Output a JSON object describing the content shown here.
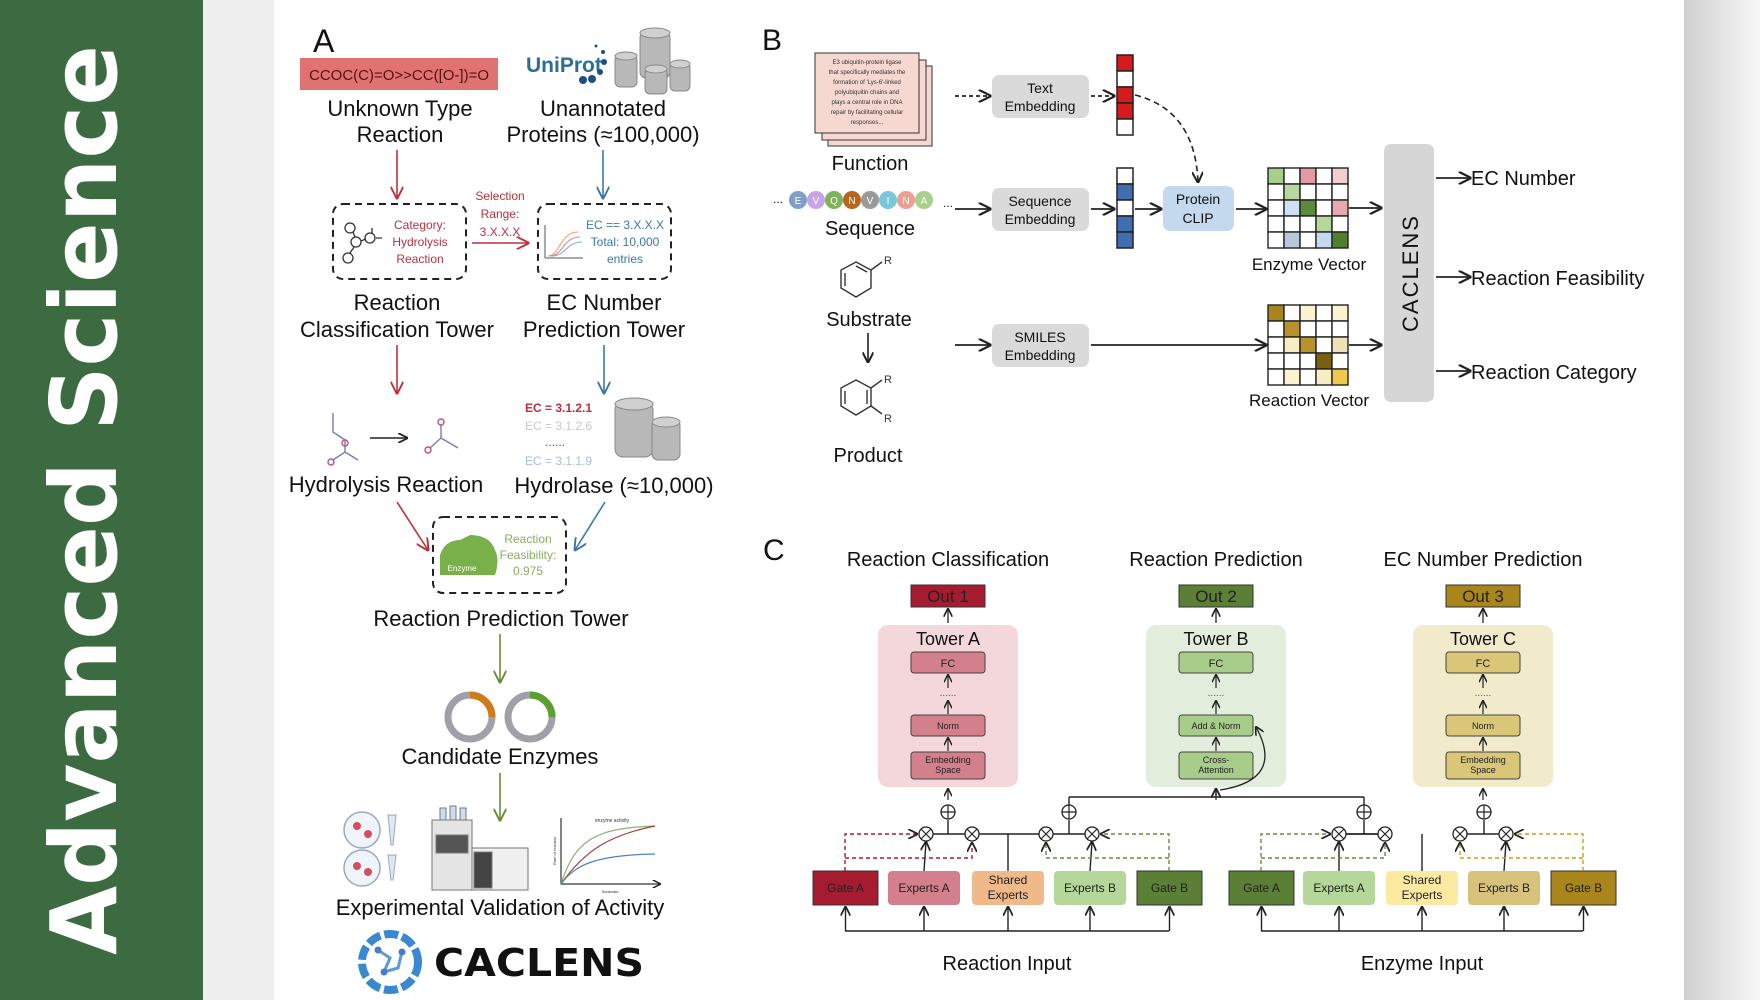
{
  "sidebar": {
    "title": "Advanced  Science",
    "bg_color": "#3d6b41"
  },
  "panel_a": {
    "label": "A",
    "smiles": "CCOC(C)=O>>CC([O-])=O",
    "unknown_reaction": [
      "Unknown Type",
      "Reaction"
    ],
    "uniprot_logo": "UniProt",
    "unannotated": [
      "Unannotated",
      "Proteins (≈100,000)"
    ],
    "category": [
      "Category:",
      "Hydrolysis",
      "Reaction"
    ],
    "selection": [
      "Selection",
      "Range:",
      "3.X.X.X"
    ],
    "ec_filter": [
      "EC == 3.X.X.X",
      "Total: 10,000",
      "entries"
    ],
    "classification_tower": [
      "Reaction",
      "Classification Tower"
    ],
    "ec_tower": [
      "EC Number",
      "Prediction Tower"
    ],
    "hydrolysis": "Hydrolysis Reaction",
    "ec_list": [
      "EC = 3.1.2.1",
      "EC = 3.1.2.6",
      "......",
      "EC = 3.1.1.9"
    ],
    "hydrolase": "Hydrolase (≈10,000)",
    "enzyme_tag": "Enzyme",
    "feasibility": [
      "Reaction",
      "Feasibility:",
      "0.975"
    ],
    "prediction_tower": "Reaction Prediction Tower",
    "candidates": "Candidate Enzymes",
    "plot_title": "enzyme activity",
    "plot_xlabel": "Substrate",
    "plot_ylabel": "Rate of reaction",
    "validation": "Experimental Validation of Activity",
    "logo_text": "CACLENS"
  },
  "panel_b": {
    "label": "B",
    "doc_text": [
      "E3 ubiquitin-protein ligase",
      "that specifically mediates the",
      "formation of 'Lys-6'-linked",
      "polyubiquitin chains and",
      "plays a central role in DNA",
      "repair by facilitating cellular",
      "responses..."
    ],
    "function": "Function",
    "text_embedding": [
      "Text",
      "Embedding"
    ],
    "sequence_residues": [
      "E",
      "V",
      "Q",
      "N",
      "V",
      "I",
      "N",
      "A"
    ],
    "residue_colors": [
      "#7f9fc6",
      "#c7a4e6",
      "#7fb25a",
      "#b8661e",
      "#9a9a9a",
      "#78c8d8",
      "#e8a090",
      "#a8d08a"
    ],
    "ellipsis": "...",
    "sequence": "Sequence",
    "sequence_embedding": [
      "Sequence",
      "Embedding"
    ],
    "protein_clip": [
      "Protein",
      "CLIP"
    ],
    "substrate": "Substrate",
    "product": "Product",
    "r_group": "R",
    "smiles_embedding": [
      "SMILES",
      "Embedding"
    ],
    "enzyme_vector": "Enzyme Vector",
    "reaction_vector": "Reaction Vector",
    "caclens": "CACLENS",
    "outputs": [
      "EC Number",
      "Reaction Feasibility",
      "Reaction Category"
    ],
    "text_vector_colors": [
      "#d41c1c",
      "#ffffff",
      "#d41c1c",
      "#d41c1c",
      "#ffffff"
    ],
    "seq_vector_colors": [
      "#ffffff",
      "#3f6fae",
      "#ffffff",
      "#3f6fae",
      "#3f6fae"
    ],
    "enzyme_grid_colors": [
      [
        "#a8cf8a",
        "#ffffff",
        "#e49aa4",
        "#ffffff",
        "#f2cdd2"
      ],
      [
        "#ffffff",
        "#b8d8a0",
        "#ffffff",
        "#ffffff",
        "#ffffff"
      ],
      [
        "#ffffff",
        "#cfe0f2",
        "#5b8a3a",
        "#ffffff",
        "#e8a8b0"
      ],
      [
        "#ffffff",
        "#ffffff",
        "#ffffff",
        "#b5d89a",
        "#ffffff"
      ],
      [
        "#ffffff",
        "#b8c8d8",
        "#ffffff",
        "#c5daf0",
        "#4f7f2f"
      ]
    ],
    "reaction_grid_colors": [
      [
        "#a8861c",
        "#ffffff",
        "#fbf2cf",
        "#ffffff",
        "#fbf2cf"
      ],
      [
        "#ffffff",
        "#b8922a",
        "#ffffff",
        "#ffffff",
        "#ffffff"
      ],
      [
        "#ffffff",
        "#f7ecc4",
        "#b8922a",
        "#ffffff",
        "#eee2b8"
      ],
      [
        "#ffffff",
        "#ffffff",
        "#ffffff",
        "#7a5f10",
        "#ffffff"
      ],
      [
        "#ffffff",
        "#fbf2cf",
        "#ffffff",
        "#f7ecc4",
        "#f0c850"
      ]
    ]
  },
  "panel_c": {
    "label": "C",
    "tasks": [
      {
        "title": "Reaction Classification",
        "out": "Out 1",
        "tower": "Tower A",
        "blocks": [
          "FC",
          "......",
          "Norm",
          "Embedding Space"
        ],
        "out_color": "#a51c30",
        "bg_color": "#f3d7db",
        "block_color": "#d4808c"
      },
      {
        "title": "Reaction Prediction",
        "out": "Out 2",
        "tower": "Tower B",
        "blocks": [
          "FC",
          "......",
          "Add & Norm",
          "Cross-Attention"
        ],
        "out_color": "#5b7f35",
        "bg_color": "#e3eddb",
        "block_color": "#a8cc8a"
      },
      {
        "title": "EC Number Prediction",
        "out": "Out 3",
        "tower": "Tower C",
        "blocks": [
          "FC",
          "......",
          "Norm",
          "Embedding Space"
        ],
        "out_color": "#a8861c",
        "bg_color": "#f1ebcc",
        "block_color": "#d9c677"
      }
    ],
    "reaction_modules": [
      {
        "label": "Gate A",
        "color": "#a51c30"
      },
      {
        "label": "Experts A",
        "color": "#d4808c"
      },
      {
        "label": "Shared Experts",
        "color": "#f0b98a"
      },
      {
        "label": "Experts B",
        "color": "#b5d89a"
      },
      {
        "label": "Gate B",
        "color": "#5b7f35"
      }
    ],
    "enzyme_modules": [
      {
        "label": "Gate A",
        "color": "#5b7f35"
      },
      {
        "label": "Experts A",
        "color": "#b5d89a"
      },
      {
        "label": "Shared Experts",
        "color": "#fde9a0"
      },
      {
        "label": "Experts B",
        "color": "#d6c27a"
      },
      {
        "label": "Gate B",
        "color": "#a8861c"
      }
    ],
    "reaction_input": "Reaction Input",
    "enzyme_input": "Enzyme Input"
  }
}
